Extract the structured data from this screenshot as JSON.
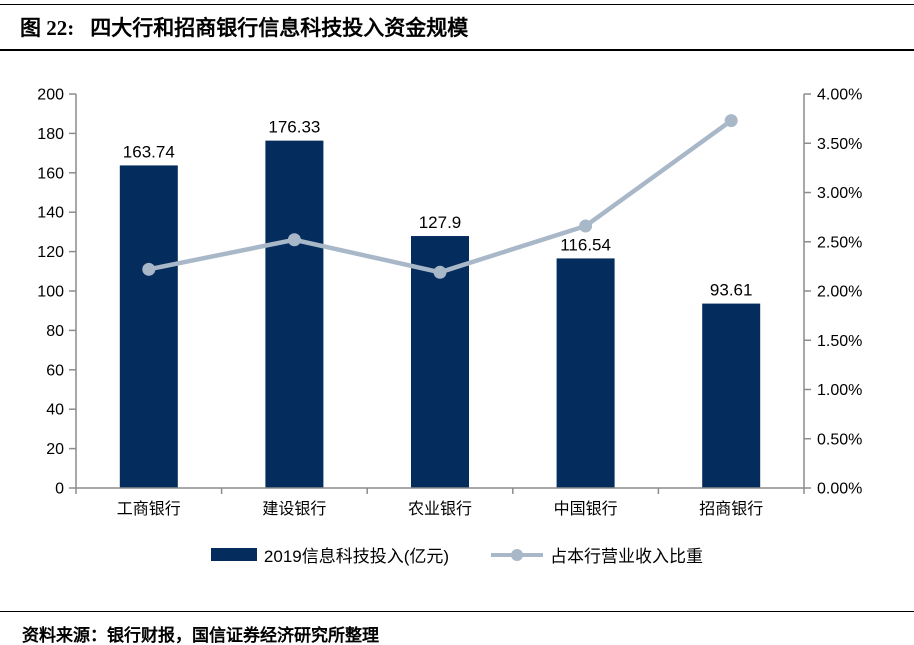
{
  "header": {
    "figure_label": "图 22:",
    "title": "四大行和招商银行信息科技投入资金规模"
  },
  "footer": {
    "source": "资料来源：银行财报，国信证券经济研究所整理"
  },
  "colors": {
    "bar": "#042c5c",
    "line": "#a9b8c8",
    "axis": "#8c8c8c",
    "text": "#000000"
  },
  "chart_data": {
    "type": "bar",
    "title": "四大行和招商银行信息科技投入资金规模",
    "categories": [
      "工商银行",
      "建设银行",
      "农业银行",
      "中国银行",
      "招商银行"
    ],
    "series": [
      {
        "name": "2019信息科技投入(亿元)",
        "type": "bar",
        "yaxis": "left",
        "values": [
          163.74,
          176.33,
          127.9,
          116.54,
          93.61
        ],
        "data_labels": [
          "163.74",
          "176.33",
          "127.9",
          "116.54",
          "93.61"
        ]
      },
      {
        "name": "占本行营业收入比重",
        "type": "line",
        "yaxis": "right",
        "values": [
          2.22,
          2.52,
          2.19,
          2.66,
          3.73
        ]
      }
    ],
    "left_axis": {
      "min": 0,
      "max": 200,
      "step": 20,
      "tick_labels": [
        "0",
        "20",
        "40",
        "60",
        "80",
        "100",
        "120",
        "140",
        "160",
        "180",
        "200"
      ]
    },
    "right_axis": {
      "min": 0,
      "max": 4,
      "step": 0.5,
      "tick_labels": [
        "0.00%",
        "0.50%",
        "1.00%",
        "1.50%",
        "2.00%",
        "2.50%",
        "3.00%",
        "3.50%",
        "4.00%"
      ]
    },
    "grid": false,
    "legend_position": "bottom"
  }
}
